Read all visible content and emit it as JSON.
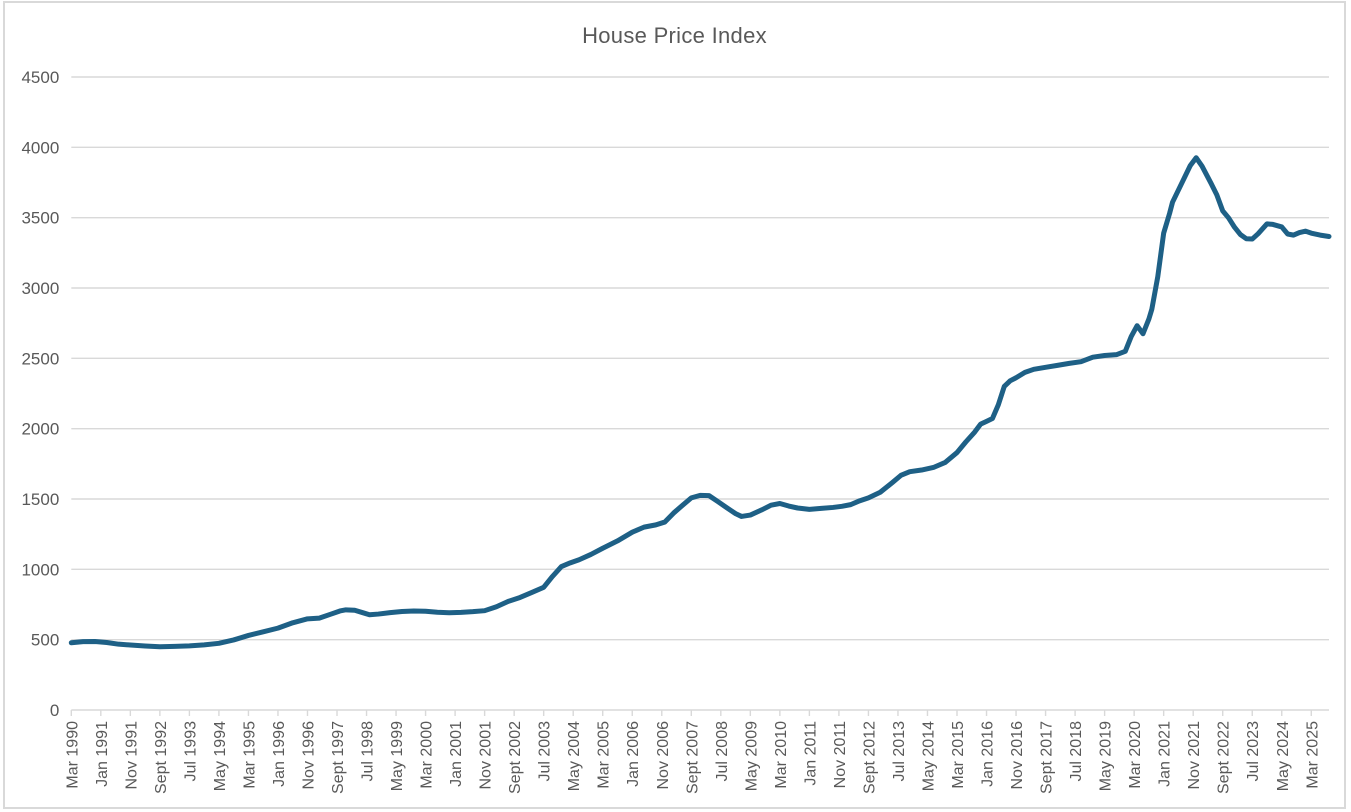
{
  "chart": {
    "title": "House Price Index",
    "colors": {
      "line": "#1E6086",
      "grid": "#D9D9D9",
      "axis_text": "#595959",
      "title_text": "#595959",
      "frame_border": "#D9D9D9",
      "background": "#FFFFFF"
    }
  },
  "chart_data": {
    "type": "line",
    "title": "House Price Index",
    "xlabel": "",
    "ylabel": "",
    "legend": "none",
    "grid": "horizontal",
    "ylim": [
      0,
      4500
    ],
    "y_ticks": [
      0,
      500,
      1000,
      1500,
      2000,
      2500,
      3000,
      3500,
      4000,
      4500
    ],
    "x_unit": "months since Mar 1990, monthly series ending ~Sept 2025",
    "x_tick_month_index": [
      0,
      10,
      20,
      30,
      40,
      50,
      60,
      70,
      80,
      90,
      100,
      110,
      120,
      130,
      140,
      150,
      160,
      170,
      180,
      190,
      200,
      210,
      220,
      230,
      240,
      250,
      260,
      270,
      280,
      290,
      300,
      310,
      320,
      330,
      340,
      350,
      360,
      370,
      380,
      390,
      400,
      410,
      420
    ],
    "x_tick_labels": [
      "Mar 1990",
      "Jan 1991",
      "Nov 1991",
      "Sept 1992",
      "Jul 1993",
      "May 1994",
      "Mar 1995",
      "Jan 1996",
      "Nov 1996",
      "Sept 1997",
      "Jul 1998",
      "May 1999",
      "Mar 2000",
      "Jan 2001",
      "Nov 2001",
      "Sept 2002",
      "Jul 2003",
      "May 2004",
      "Mar 2005",
      "Jan 2006",
      "Nov 2006",
      "Sept 2007",
      "Jul 2008",
      "May 2009",
      "Mar 2010",
      "Jan 2011",
      "Nov 2011",
      "Sept 2012",
      "Jul 2013",
      "May 2014",
      "Mar 2015",
      "Jan 2016",
      "Nov 2016",
      "Sept 2017",
      "Jul 2018",
      "May 2019",
      "Mar 2020",
      "Jan 2021",
      "Nov 2021",
      "Sept 2022",
      "Jul 2023",
      "May 2024",
      "Mar 2025"
    ],
    "series": [
      {
        "name": "House Price Index",
        "points": [
          [
            0,
            478
          ],
          [
            4,
            486
          ],
          [
            8,
            487
          ],
          [
            12,
            480
          ],
          [
            16,
            468
          ],
          [
            20,
            462
          ],
          [
            25,
            455
          ],
          [
            30,
            450
          ],
          [
            35,
            452
          ],
          [
            40,
            456
          ],
          [
            45,
            463
          ],
          [
            50,
            474
          ],
          [
            55,
            498
          ],
          [
            60,
            530
          ],
          [
            65,
            556
          ],
          [
            70,
            582
          ],
          [
            75,
            620
          ],
          [
            80,
            648
          ],
          [
            84,
            653
          ],
          [
            88,
            682
          ],
          [
            91,
            704
          ],
          [
            93,
            712
          ],
          [
            96,
            709
          ],
          [
            99,
            690
          ],
          [
            101,
            677
          ],
          [
            104,
            682
          ],
          [
            108,
            692
          ],
          [
            112,
            700
          ],
          [
            116,
            704
          ],
          [
            120,
            702
          ],
          [
            124,
            695
          ],
          [
            128,
            691
          ],
          [
            132,
            694
          ],
          [
            136,
            699
          ],
          [
            140,
            706
          ],
          [
            144,
            734
          ],
          [
            148,
            772
          ],
          [
            152,
            800
          ],
          [
            156,
            836
          ],
          [
            160,
            872
          ],
          [
            163,
            950
          ],
          [
            166,
            1020
          ],
          [
            169,
            1046
          ],
          [
            172,
            1068
          ],
          [
            176,
            1106
          ],
          [
            180,
            1150
          ],
          [
            185,
            1202
          ],
          [
            190,
            1264
          ],
          [
            194,
            1300
          ],
          [
            198,
            1316
          ],
          [
            201,
            1336
          ],
          [
            204,
            1400
          ],
          [
            207,
            1455
          ],
          [
            210,
            1508
          ],
          [
            213,
            1526
          ],
          [
            216,
            1524
          ],
          [
            219,
            1482
          ],
          [
            222,
            1438
          ],
          [
            225,
            1396
          ],
          [
            227,
            1376
          ],
          [
            230,
            1386
          ],
          [
            234,
            1424
          ],
          [
            237,
            1456
          ],
          [
            240,
            1468
          ],
          [
            243,
            1450
          ],
          [
            246,
            1436
          ],
          [
            250,
            1426
          ],
          [
            254,
            1433
          ],
          [
            258,
            1440
          ],
          [
            261,
            1448
          ],
          [
            264,
            1460
          ],
          [
            267,
            1487
          ],
          [
            270,
            1508
          ],
          [
            274,
            1548
          ],
          [
            278,
            1615
          ],
          [
            281,
            1668
          ],
          [
            284,
            1694
          ],
          [
            288,
            1706
          ],
          [
            292,
            1724
          ],
          [
            296,
            1760
          ],
          [
            300,
            1830
          ],
          [
            303,
            1906
          ],
          [
            306,
            1976
          ],
          [
            308,
            2032
          ],
          [
            310,
            2052
          ],
          [
            312,
            2072
          ],
          [
            314,
            2170
          ],
          [
            316,
            2300
          ],
          [
            318,
            2340
          ],
          [
            320,
            2362
          ],
          [
            323,
            2400
          ],
          [
            326,
            2422
          ],
          [
            330,
            2436
          ],
          [
            334,
            2450
          ],
          [
            338,
            2464
          ],
          [
            342,
            2476
          ],
          [
            346,
            2508
          ],
          [
            350,
            2520
          ],
          [
            354,
            2526
          ],
          [
            357,
            2550
          ],
          [
            359,
            2655
          ],
          [
            361,
            2732
          ],
          [
            363,
            2675
          ],
          [
            365,
            2780
          ],
          [
            366,
            2850
          ],
          [
            368,
            3080
          ],
          [
            370,
            3390
          ],
          [
            372,
            3530
          ],
          [
            373,
            3610
          ],
          [
            376,
            3740
          ],
          [
            379,
            3870
          ],
          [
            381,
            3926
          ],
          [
            383,
            3866
          ],
          [
            386,
            3746
          ],
          [
            388,
            3662
          ],
          [
            390,
            3548
          ],
          [
            392,
            3498
          ],
          [
            394,
            3432
          ],
          [
            396,
            3380
          ],
          [
            398,
            3350
          ],
          [
            400,
            3348
          ],
          [
            402,
            3386
          ],
          [
            405,
            3456
          ],
          [
            407,
            3452
          ],
          [
            410,
            3434
          ],
          [
            412,
            3384
          ],
          [
            414,
            3376
          ],
          [
            416,
            3394
          ],
          [
            418,
            3404
          ],
          [
            420,
            3390
          ],
          [
            423,
            3376
          ],
          [
            426,
            3366
          ]
        ]
      }
    ]
  }
}
